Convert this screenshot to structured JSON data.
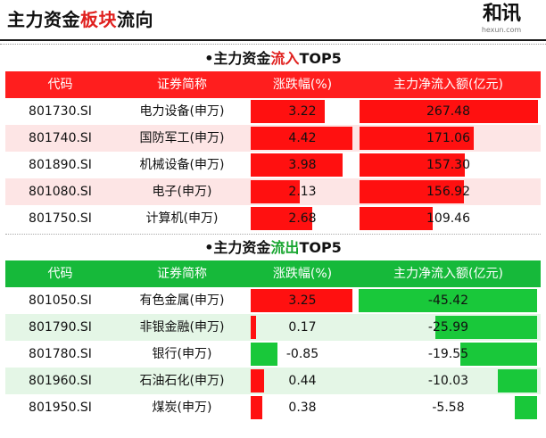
{
  "header": {
    "title_prefix": "主力资金",
    "title_highlight": "板块",
    "title_suffix": "流向",
    "logo_mark": "和讯",
    "logo_url": "hexun.com"
  },
  "inflow": {
    "title_prefix": "•主力资金",
    "title_highlight": "流入",
    "title_suffix": "TOP5",
    "columns": [
      "代码",
      "证券简称",
      "涨跌幅(%)",
      "主力净流入额(亿元)"
    ],
    "rows": [
      {
        "code": "801730.SI",
        "name": "电力设备(申万)",
        "change": "3.22",
        "change_val": 3.22,
        "flow": "267.48",
        "flow_val": 267.48
      },
      {
        "code": "801740.SI",
        "name": "国防军工(申万)",
        "change": "4.42",
        "change_val": 4.42,
        "flow": "171.06",
        "flow_val": 171.06
      },
      {
        "code": "801890.SI",
        "name": "机械设备(申万)",
        "change": "3.98",
        "change_val": 3.98,
        "flow": "157.30",
        "flow_val": 157.3
      },
      {
        "code": "801080.SI",
        "name": "电子(申万)",
        "change": "2.13",
        "change_val": 2.13,
        "flow": "156.92",
        "flow_val": 156.92
      },
      {
        "code": "801750.SI",
        "name": "计算机(申万)",
        "change": "2.68",
        "change_val": 2.68,
        "flow": "109.46",
        "flow_val": 109.46
      }
    ]
  },
  "outflow": {
    "title_prefix": "•主力资金",
    "title_highlight": "流出",
    "title_suffix": "TOP5",
    "columns": [
      "代码",
      "证券简称",
      "涨跌幅(%)",
      "主力净流入额(亿元)"
    ],
    "rows": [
      {
        "code": "801050.SI",
        "name": "有色金属(申万)",
        "change": "3.25",
        "change_val": 3.25,
        "flow": "-45.42",
        "flow_val": -45.42
      },
      {
        "code": "801790.SI",
        "name": "非银金融(申万)",
        "change": "0.17",
        "change_val": 0.17,
        "flow": "-25.99",
        "flow_val": -25.99
      },
      {
        "code": "801780.SI",
        "name": "银行(申万)",
        "change": "-0.85",
        "change_val": -0.85,
        "flow": "-19.55",
        "flow_val": -19.55
      },
      {
        "code": "801960.SI",
        "name": "石油石化(申万)",
        "change": "0.44",
        "change_val": 0.44,
        "flow": "-10.03",
        "flow_val": -10.03
      },
      {
        "code": "801950.SI",
        "name": "煤炭(申万)",
        "change": "0.38",
        "change_val": 0.38,
        "flow": "-5.58",
        "flow_val": -5.58
      }
    ]
  },
  "colors": {
    "red": "#ff1010",
    "green": "#19c83a",
    "title_red": "#e0201e",
    "title_green": "#16a52e"
  }
}
